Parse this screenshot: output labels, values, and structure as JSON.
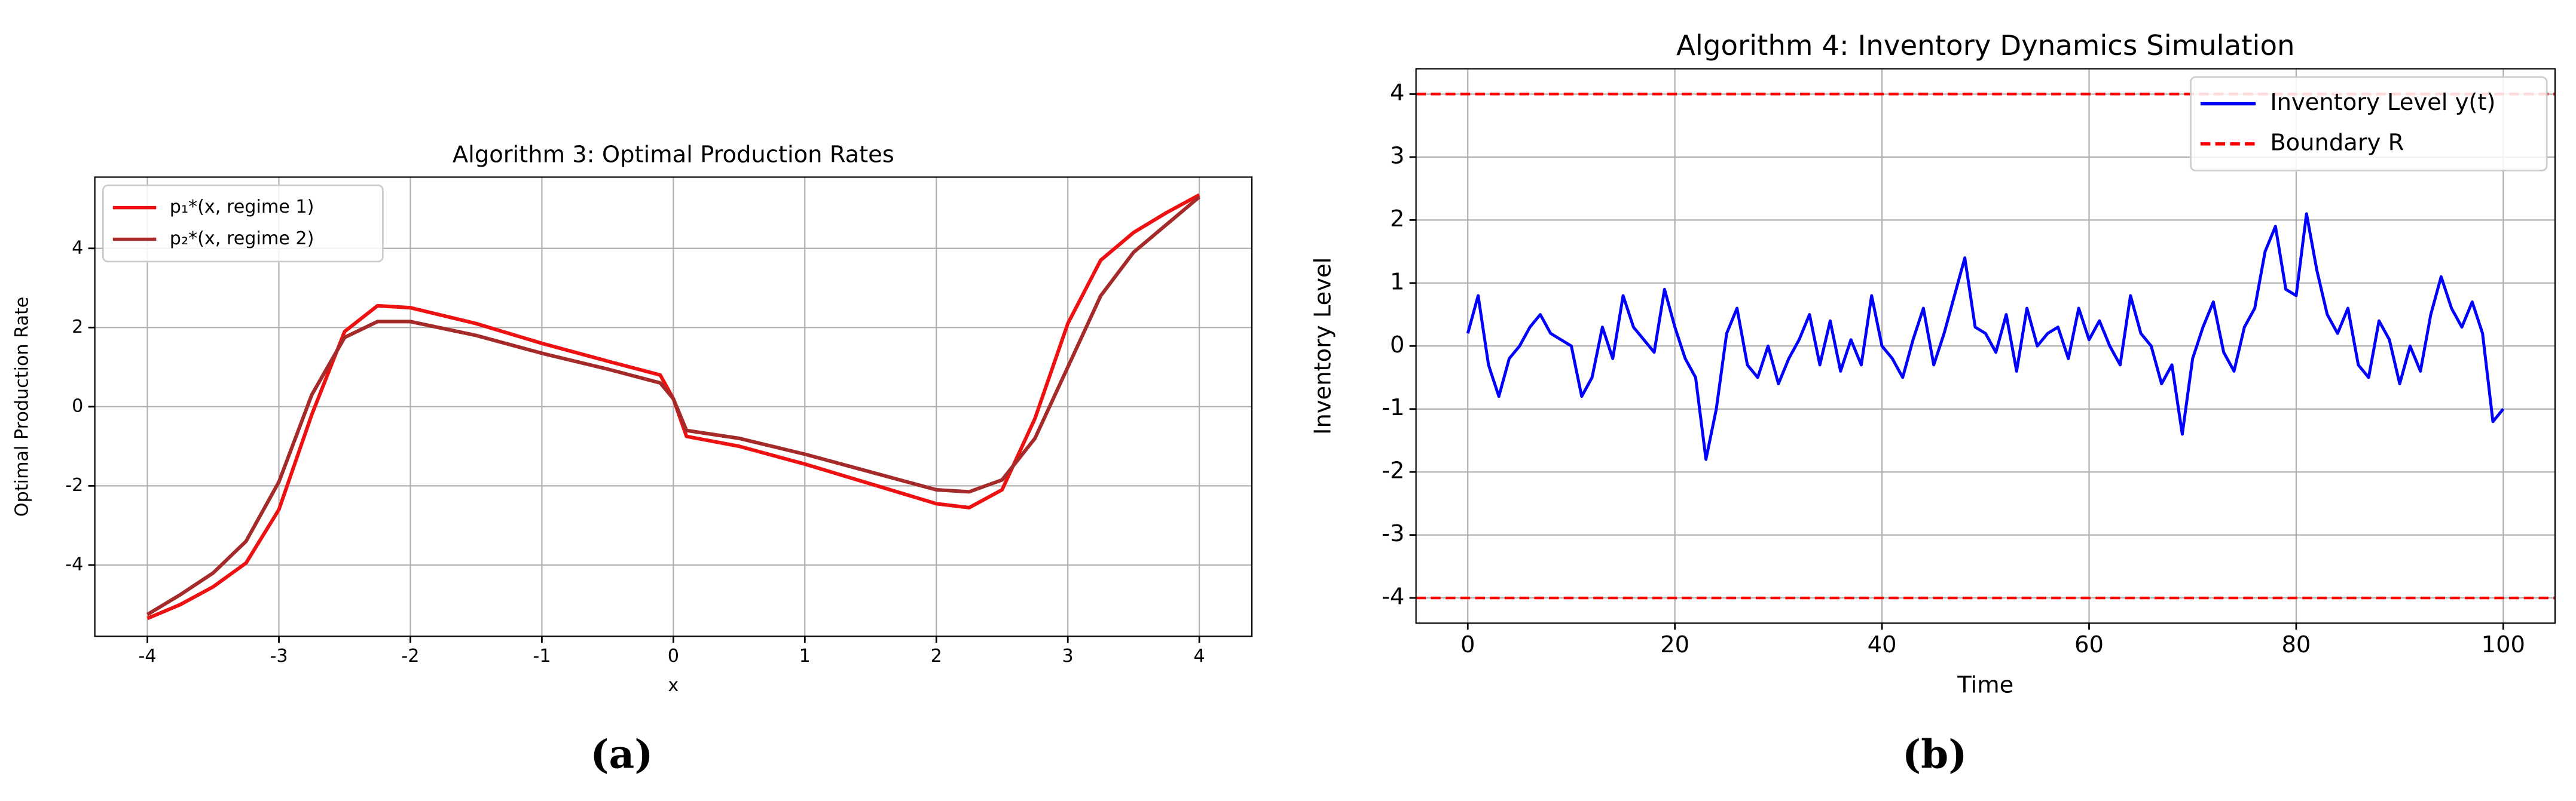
{
  "chart_data": [
    {
      "type": "line",
      "title": "Algorithm 3: Optimal Production Rates",
      "xlabel": "x",
      "ylabel": "Optimal Production Rate",
      "caption": "(a)",
      "x": [
        -4,
        -3.75,
        -3.5,
        -3.25,
        -3,
        -2.75,
        -2.5,
        -2.25,
        -2,
        -1.5,
        -1,
        -0.5,
        -0.1,
        0,
        0.1,
        0.5,
        1,
        1.5,
        2,
        2.25,
        2.5,
        2.75,
        3,
        3.25,
        3.5,
        3.75,
        4
      ],
      "series": [
        {
          "name": "p₁*(x, regime 1)",
          "color": "#ee1111",
          "values": [
            -5.35,
            -5.0,
            -4.55,
            -3.95,
            -2.6,
            -0.2,
            1.9,
            2.55,
            2.5,
            2.1,
            1.6,
            1.15,
            0.8,
            0.2,
            -0.75,
            -1.0,
            -1.45,
            -1.95,
            -2.45,
            -2.55,
            -2.1,
            -0.3,
            2.1,
            3.7,
            4.4,
            4.9,
            5.35
          ]
        },
        {
          "name": "p₂*(x, regime 2)",
          "color": "#a52a2a",
          "values": [
            -5.25,
            -4.75,
            -4.2,
            -3.4,
            -1.9,
            0.3,
            1.75,
            2.15,
            2.15,
            1.8,
            1.35,
            0.95,
            0.6,
            0.2,
            -0.6,
            -0.8,
            -1.2,
            -1.65,
            -2.1,
            -2.15,
            -1.85,
            -0.8,
            1.0,
            2.8,
            3.9,
            4.6,
            5.3
          ]
        }
      ],
      "xlim": [
        -4.4,
        4.4
      ],
      "xticks": [
        -4,
        -3,
        -2,
        -1,
        0,
        1,
        2,
        3,
        4
      ],
      "ylim": [
        -5.8,
        5.8
      ],
      "yticks": [
        -4,
        -2,
        0,
        2,
        4
      ],
      "grid": true,
      "legend": "upper left"
    },
    {
      "type": "line",
      "title": "Algorithm 4: Inventory Dynamics Simulation",
      "xlabel": "Time",
      "ylabel": "Inventory Level",
      "caption": "(b)",
      "x": [
        0,
        1,
        2,
        3,
        4,
        5,
        6,
        7,
        8,
        9,
        10,
        11,
        12,
        13,
        14,
        15,
        16,
        17,
        18,
        19,
        20,
        21,
        22,
        23,
        24,
        25,
        26,
        27,
        28,
        29,
        30,
        31,
        32,
        33,
        34,
        35,
        36,
        37,
        38,
        39,
        40,
        41,
        42,
        43,
        44,
        45,
        46,
        47,
        48,
        49,
        50,
        51,
        52,
        53,
        54,
        55,
        56,
        57,
        58,
        59,
        60,
        61,
        62,
        63,
        64,
        65,
        66,
        67,
        68,
        69,
        70,
        71,
        72,
        73,
        74,
        75,
        76,
        77,
        78,
        79,
        80,
        81,
        82,
        83,
        84,
        85,
        86,
        87,
        88,
        89,
        90,
        91,
        92,
        93,
        94,
        95,
        96,
        97,
        98,
        99,
        100
      ],
      "series": [
        {
          "name": "Inventory Level y(t)",
          "color": "#0000ff",
          "values": [
            0.2,
            0.8,
            -0.3,
            -0.8,
            -0.2,
            0.0,
            0.3,
            0.5,
            0.2,
            0.1,
            0.0,
            -0.8,
            -0.5,
            0.3,
            -0.2,
            0.8,
            0.3,
            0.1,
            -0.1,
            0.9,
            0.3,
            -0.2,
            -0.5,
            -1.8,
            -1.0,
            0.2,
            0.6,
            -0.3,
            -0.5,
            0.0,
            -0.6,
            -0.2,
            0.1,
            0.5,
            -0.3,
            0.4,
            -0.4,
            0.1,
            -0.3,
            0.8,
            0.0,
            -0.2,
            -0.5,
            0.1,
            0.6,
            -0.3,
            0.2,
            0.8,
            1.4,
            0.3,
            0.2,
            -0.1,
            0.5,
            -0.4,
            0.6,
            0.0,
            0.2,
            0.3,
            -0.2,
            0.6,
            0.1,
            0.4,
            0.0,
            -0.3,
            0.8,
            0.2,
            0.0,
            -0.6,
            -0.3,
            -1.4,
            -0.2,
            0.3,
            0.7,
            -0.1,
            -0.4,
            0.3,
            0.6,
            1.5,
            1.9,
            0.9,
            0.8,
            2.1,
            1.2,
            0.5,
            0.2,
            0.6,
            -0.3,
            -0.5,
            0.4,
            0.1,
            -0.6,
            0.0,
            -0.4,
            0.5,
            1.1,
            0.6,
            0.3,
            0.7,
            0.2,
            -1.2,
            -1.0
          ]
        }
      ],
      "hlines": {
        "name": "Boundary R",
        "color": "#ff0000",
        "values": [
          4,
          -4
        ]
      },
      "xlim": [
        -5,
        105
      ],
      "xticks": [
        0,
        20,
        40,
        60,
        80,
        100
      ],
      "ylim": [
        -4.4,
        4.4
      ],
      "yticks": [
        -4,
        -3,
        -2,
        -1,
        0,
        1,
        2,
        3,
        4
      ],
      "grid": true,
      "legend": "upper right"
    }
  ]
}
